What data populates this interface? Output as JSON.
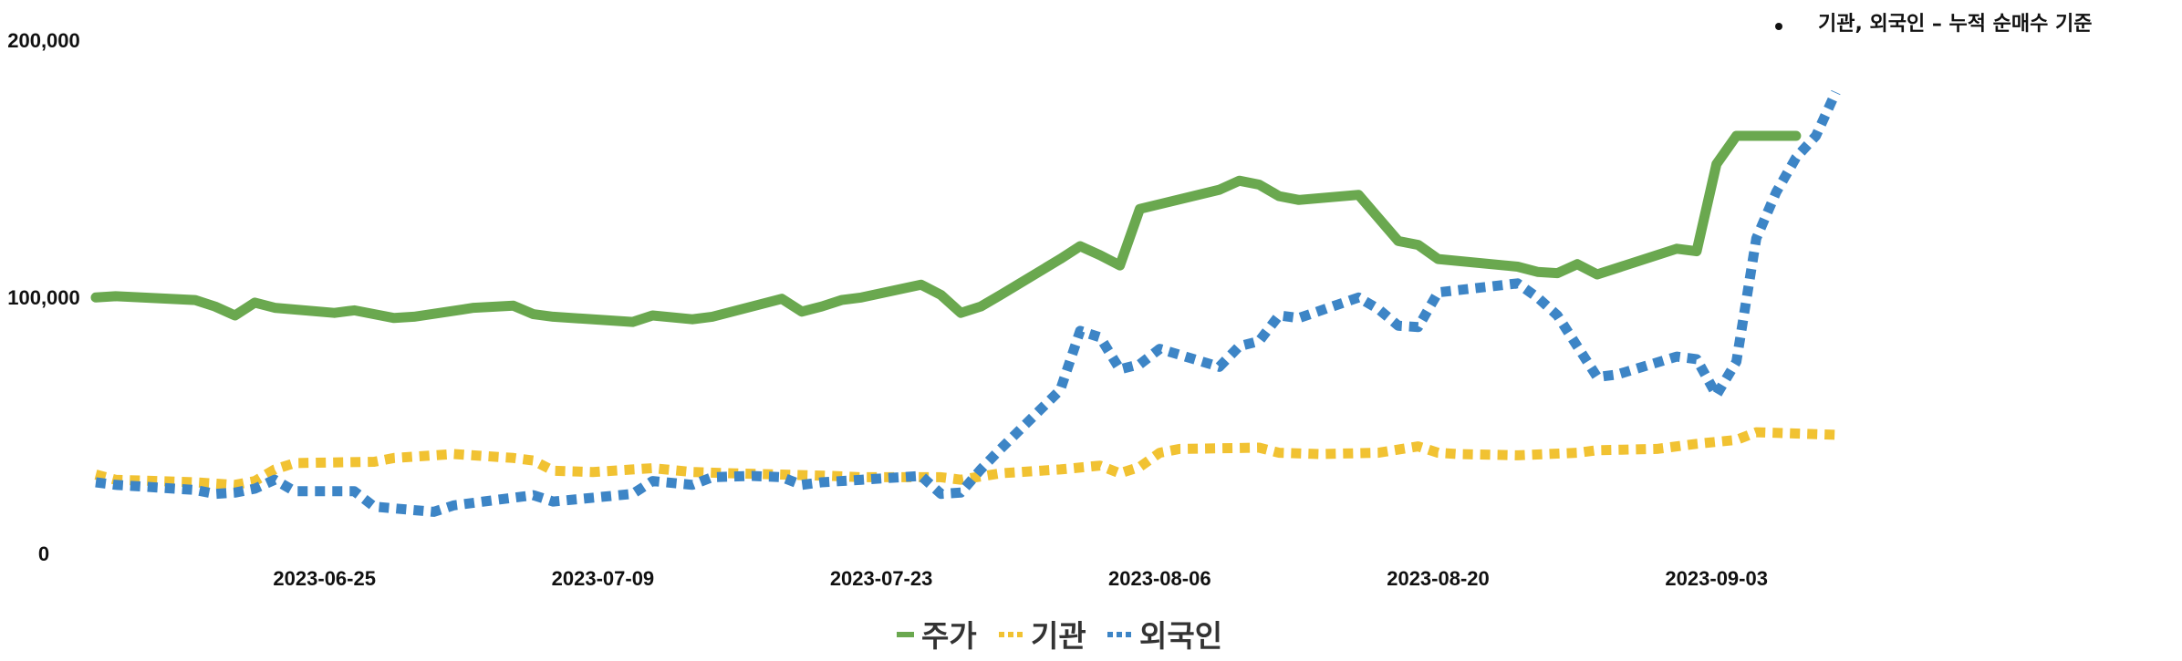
{
  "chart_data": {
    "type": "line",
    "annotation": "기관, 외국인 – 누적 순매수 기준",
    "y_ticks": [
      "200,000",
      "100,000",
      "0"
    ],
    "ylim": [
      0,
      200000
    ],
    "x_ticks": [
      {
        "label": "2023-06-25",
        "x": 9
      },
      {
        "label": "2023-07-09",
        "x": 23
      },
      {
        "label": "2023-07-23",
        "x": 37
      },
      {
        "label": "2023-08-06",
        "x": 51
      },
      {
        "label": "2023-08-20",
        "x": 65
      },
      {
        "label": "2023-09-03",
        "x": 79
      }
    ],
    "xlim": [
      -2.5,
      80
    ],
    "legend_position": "bottom",
    "grid": false,
    "series": [
      {
        "name": "주가",
        "color": "#6aa84f",
        "style": "solid",
        "points": [
          [
            -2.5,
            99000
          ],
          [
            -1.5,
            99500
          ],
          [
            2.5,
            98000
          ],
          [
            3.5,
            95500
          ],
          [
            4.5,
            92000
          ],
          [
            5.5,
            97000
          ],
          [
            6.5,
            95000
          ],
          [
            9.5,
            93000
          ],
          [
            10.5,
            94000
          ],
          [
            12.5,
            91000
          ],
          [
            13.5,
            91500
          ],
          [
            16.5,
            95000
          ],
          [
            18.5,
            95800
          ],
          [
            19.5,
            92500
          ],
          [
            20.5,
            91500
          ],
          [
            24.5,
            89500
          ],
          [
            25.5,
            92000
          ],
          [
            27.5,
            90500
          ],
          [
            28.5,
            91500
          ],
          [
            32,
            98500
          ],
          [
            33,
            93500
          ],
          [
            34,
            95500
          ],
          [
            35,
            98000
          ],
          [
            36,
            99000
          ],
          [
            39,
            104000
          ],
          [
            40,
            100000
          ],
          [
            41,
            93000
          ],
          [
            42,
            95500
          ],
          [
            43,
            100000
          ],
          [
            46,
            114000
          ],
          [
            47,
            119000
          ],
          [
            48,
            115500
          ],
          [
            49,
            111500
          ],
          [
            50,
            133500
          ],
          [
            54,
            141000
          ],
          [
            55,
            144500
          ],
          [
            56,
            143000
          ],
          [
            57,
            138500
          ],
          [
            58,
            137000
          ],
          [
            61,
            139000
          ],
          [
            62,
            130000
          ],
          [
            63,
            121000
          ],
          [
            64,
            119500
          ],
          [
            65,
            114000
          ],
          [
            69,
            111000
          ],
          [
            70,
            109000
          ],
          [
            71,
            108500
          ],
          [
            72,
            112000
          ],
          [
            73,
            108000
          ],
          [
            77,
            118000
          ],
          [
            78,
            117000
          ],
          [
            79,
            151000
          ],
          [
            80,
            162000
          ],
          [
            83,
            162000
          ]
        ]
      },
      {
        "name": "기관",
        "color": "#f1c232",
        "style": "dotted",
        "points": [
          [
            -2.5,
            30000
          ],
          [
            -1.5,
            28000
          ],
          [
            2.5,
            27000
          ],
          [
            3.5,
            26500
          ],
          [
            4.5,
            26000
          ],
          [
            5.5,
            27500
          ],
          [
            6.5,
            32000
          ],
          [
            7.5,
            34500
          ],
          [
            11.5,
            35000
          ],
          [
            12.5,
            36500
          ],
          [
            14.5,
            37500
          ],
          [
            15.5,
            38000
          ],
          [
            18.5,
            36500
          ],
          [
            19.5,
            35500
          ],
          [
            20.5,
            31500
          ],
          [
            22.5,
            31000
          ],
          [
            25.5,
            32500
          ],
          [
            27.5,
            31000
          ],
          [
            29.5,
            30500
          ],
          [
            32,
            30000
          ],
          [
            34.5,
            29500
          ],
          [
            36,
            29000
          ],
          [
            40,
            29000
          ],
          [
            41,
            28000
          ],
          [
            43,
            30500
          ],
          [
            46,
            32000
          ],
          [
            48,
            33500
          ],
          [
            49,
            30500
          ],
          [
            50,
            33000
          ],
          [
            51,
            38500
          ],
          [
            52,
            40000
          ],
          [
            56,
            40500
          ],
          [
            57,
            38500
          ],
          [
            59,
            38000
          ],
          [
            62,
            38500
          ],
          [
            64,
            41000
          ],
          [
            65,
            38500
          ],
          [
            66,
            38000
          ],
          [
            69,
            37500
          ],
          [
            72,
            38500
          ],
          [
            73,
            39500
          ],
          [
            76,
            40000
          ],
          [
            78,
            42000
          ],
          [
            80,
            43500
          ],
          [
            81,
            46500
          ],
          [
            83,
            46000
          ],
          [
            85,
            45500
          ]
        ]
      },
      {
        "name": "외국인",
        "color": "#3d85c6",
        "style": "dotted",
        "points": [
          [
            -2.5,
            27000
          ],
          [
            -1.5,
            26000
          ],
          [
            2.5,
            24000
          ],
          [
            3.5,
            22500
          ],
          [
            4.5,
            23000
          ],
          [
            5.5,
            24500
          ],
          [
            6.5,
            28000
          ],
          [
            7.5,
            23500
          ],
          [
            10.5,
            23500
          ],
          [
            11.5,
            17500
          ],
          [
            14.5,
            15500
          ],
          [
            15.5,
            18000
          ],
          [
            18.5,
            21000
          ],
          [
            19.5,
            22000
          ],
          [
            20.5,
            19500
          ],
          [
            24.5,
            22500
          ],
          [
            25.5,
            27500
          ],
          [
            27.5,
            26000
          ],
          [
            28.5,
            29000
          ],
          [
            30.5,
            29500
          ],
          [
            32,
            29000
          ],
          [
            33,
            26000
          ],
          [
            34,
            27000
          ],
          [
            36,
            28000
          ],
          [
            39,
            29500
          ],
          [
            40,
            22500
          ],
          [
            41,
            23000
          ],
          [
            42,
            32000
          ],
          [
            43,
            40000
          ],
          [
            46,
            63000
          ],
          [
            47,
            86000
          ],
          [
            48,
            83500
          ],
          [
            49,
            71000
          ],
          [
            50,
            73000
          ],
          [
            51,
            79000
          ],
          [
            54,
            72000
          ],
          [
            55,
            80000
          ],
          [
            56,
            82000
          ],
          [
            57,
            92000
          ],
          [
            58,
            91000
          ],
          [
            61,
            99000
          ],
          [
            62,
            94500
          ],
          [
            63,
            88000
          ],
          [
            64,
            87500
          ],
          [
            65,
            101000
          ],
          [
            69,
            104500
          ],
          [
            70,
            99000
          ],
          [
            71,
            92000
          ],
          [
            72,
            80000
          ],
          [
            73,
            68000
          ],
          [
            74,
            69000
          ],
          [
            77,
            76000
          ],
          [
            78,
            75000
          ],
          [
            79,
            61000
          ],
          [
            80,
            74000
          ],
          [
            81,
            122000
          ],
          [
            82,
            140000
          ],
          [
            83,
            153500
          ],
          [
            84,
            162000
          ],
          [
            85,
            179000
          ]
        ]
      }
    ]
  }
}
